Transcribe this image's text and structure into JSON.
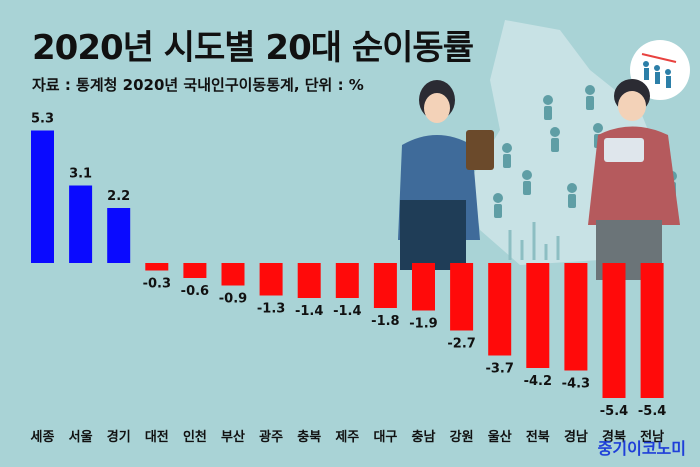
{
  "title": "2020년 시도별 20대 순이동률",
  "subtitle": "자료 : 통계청 2020년 국내인구이동통계, 단위 : %",
  "brand": "중기이코노미",
  "colors": {
    "background": "#a9d3d6",
    "positive": "#0a0aff",
    "negative": "#ff0a0a",
    "map": "#cfe6e8",
    "figure": "#5f9ea5"
  },
  "chart_data": {
    "type": "bar",
    "categories": [
      "세종",
      "서울",
      "경기",
      "대전",
      "인천",
      "부산",
      "광주",
      "충북",
      "제주",
      "대구",
      "충남",
      "강원",
      "울산",
      "전북",
      "경남",
      "경북",
      "전남"
    ],
    "values": [
      5.3,
      3.1,
      2.2,
      -0.3,
      -0.6,
      -0.9,
      -1.3,
      -1.4,
      -1.4,
      -1.8,
      -1.9,
      -2.7,
      -3.7,
      -4.2,
      -4.3,
      -5.4,
      -5.4
    ],
    "labels": [
      "5.3",
      "3.1",
      "2.2",
      "-0.3",
      "-0.6",
      "-0.9",
      "-1.3",
      "-1.4",
      "-1.4",
      "-1.8",
      "-1.9",
      "-2.7",
      "-3.7",
      "-4.2",
      "-4.3",
      "-5.4",
      "-5.4"
    ],
    "ylim": [
      -5.6,
      5.6
    ],
    "grid": false,
    "legend": "none"
  }
}
